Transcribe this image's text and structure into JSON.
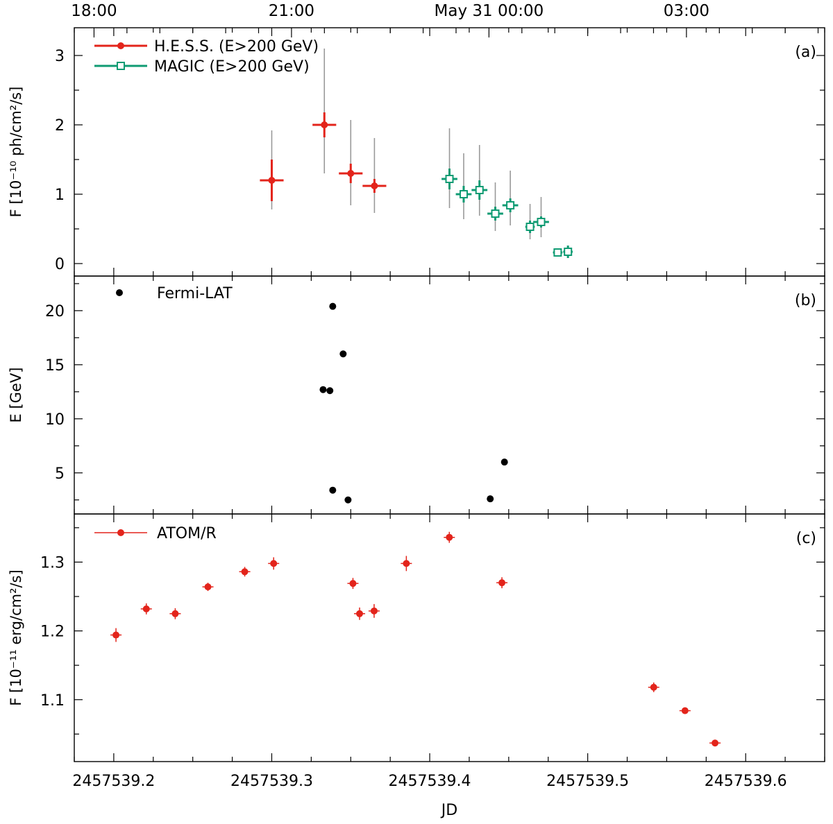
{
  "chart_data": {
    "type": "scatter",
    "title": "",
    "time_axis": {
      "ticks": [
        {
          "jd": 2457539.1875,
          "label": "18:00"
        },
        {
          "jd": 2457539.3125,
          "label": "21:00"
        },
        {
          "jd": 2457539.4375,
          "label": "May 31 00:00"
        },
        {
          "jd": 2457539.5625,
          "label": "03:00"
        }
      ],
      "minor_step_days": 0.0208333
    },
    "x_axis": {
      "label": "JD",
      "range": [
        2457539.175,
        2457539.65
      ],
      "ticks": [
        2457539.2,
        2457539.3,
        2457539.4,
        2457539.5,
        2457539.6
      ],
      "tick_labels": [
        "2457539.2",
        "2457539.3",
        "2457539.4",
        "2457539.5",
        "2457539.6"
      ],
      "minor_step": 0.025
    },
    "panels": [
      {
        "id": "a",
        "panel_label": "(a)",
        "ylabel": "F [10⁻¹⁰ ph/cm²/s]",
        "ylim": [
          -0.18,
          3.4
        ],
        "yticks": [
          0,
          1,
          2,
          3
        ],
        "ytick_labels": [
          "0",
          "1",
          "2",
          "3"
        ],
        "series": [
          {
            "name": "H.E.S.S. (E>200 GeV)",
            "color": "#e3241b",
            "marker": "filled-circle",
            "points": [
              {
                "x": 2457539.3,
                "y": 1.2,
                "xerr": 0.0075,
                "yerr": 0.3,
                "sys": [
                  0.78,
                  1.92
                ]
              },
              {
                "x": 2457539.3333,
                "y": 2.0,
                "xerr": 0.0075,
                "yerr": 0.18,
                "sys": [
                  1.3,
                  3.1
                ]
              },
              {
                "x": 2457539.35,
                "y": 1.3,
                "xerr": 0.0075,
                "yerr": 0.14,
                "sys": [
                  0.84,
                  2.07
                ]
              },
              {
                "x": 2457539.365,
                "y": 1.12,
                "xerr": 0.0075,
                "yerr": 0.1,
                "sys": [
                  0.73,
                  1.81
                ]
              }
            ]
          },
          {
            "name": "MAGIC (E>200 GeV)",
            "color": "#0f9b73",
            "marker": "open-square",
            "points": [
              {
                "x": 2457539.4125,
                "y": 1.22,
                "xerr": 0.005,
                "yerr": 0.15,
                "sys": [
                  0.8,
                  1.95
                ]
              },
              {
                "x": 2457539.4215,
                "y": 1.0,
                "xerr": 0.005,
                "yerr": 0.12,
                "sys": [
                  0.64,
                  1.59
                ]
              },
              {
                "x": 2457539.4315,
                "y": 1.06,
                "xerr": 0.005,
                "yerr": 0.14,
                "sys": [
                  0.69,
                  1.71
                ]
              },
              {
                "x": 2457539.4415,
                "y": 0.72,
                "xerr": 0.005,
                "yerr": 0.1,
                "sys": [
                  0.47,
                  1.17
                ]
              },
              {
                "x": 2457539.451,
                "y": 0.84,
                "xerr": 0.005,
                "yerr": 0.1,
                "sys": [
                  0.55,
                  1.34
                ]
              },
              {
                "x": 2457539.4635,
                "y": 0.53,
                "xerr": 0.003,
                "yerr": 0.09,
                "sys": [
                  0.35,
                  0.86
                ]
              },
              {
                "x": 2457539.4705,
                "y": 0.6,
                "xerr": 0.005,
                "yerr": 0.08,
                "sys": [
                  0.38,
                  0.96
                ]
              },
              {
                "x": 2457539.481,
                "y": 0.16,
                "xerr": 0.003,
                "yerr": 0.04,
                "sys": null
              },
              {
                "x": 2457539.4875,
                "y": 0.17,
                "xerr": 0.003,
                "yerr": 0.09,
                "sys": null
              }
            ]
          }
        ]
      },
      {
        "id": "b",
        "panel_label": "(b)",
        "ylabel": "E [GeV]",
        "ylim": [
          1.2,
          23.2
        ],
        "yticks": [
          5,
          10,
          15,
          20
        ],
        "ytick_labels": [
          "5",
          "10",
          "15",
          "20"
        ],
        "series": [
          {
            "name": "Fermi-LAT",
            "color": "#000000",
            "marker": "filled-circle",
            "points": [
              {
                "x": 2457539.3325,
                "y": 12.7
              },
              {
                "x": 2457539.3368,
                "y": 12.6
              },
              {
                "x": 2457539.3386,
                "y": 20.4
              },
              {
                "x": 2457539.3386,
                "y": 3.4
              },
              {
                "x": 2457539.3452,
                "y": 16.0
              },
              {
                "x": 2457539.3483,
                "y": 2.5
              },
              {
                "x": 2457539.4383,
                "y": 2.6
              },
              {
                "x": 2457539.4473,
                "y": 6.0
              }
            ]
          }
        ]
      },
      {
        "id": "c",
        "panel_label": "(c)",
        "ylabel": "F [10⁻¹¹ erg/cm²/s]",
        "ylim": [
          1.01,
          1.37
        ],
        "yticks": [
          1.1,
          1.2,
          1.3
        ],
        "ytick_labels": [
          "1.1",
          "1.2",
          "1.3"
        ],
        "series": [
          {
            "name": "ATOM/R",
            "color": "#e3241b",
            "marker": "filled-circle-errorbar",
            "points": [
              {
                "x": 2457539.2014,
                "y": 1.194,
                "yerr": 0.01
              },
              {
                "x": 2457539.2206,
                "y": 1.232,
                "yerr": 0.008
              },
              {
                "x": 2457539.2389,
                "y": 1.225,
                "yerr": 0.008
              },
              {
                "x": 2457539.2596,
                "y": 1.264,
                "yerr": 0.006
              },
              {
                "x": 2457539.2829,
                "y": 1.286,
                "yerr": 0.007
              },
              {
                "x": 2457539.3012,
                "y": 1.298,
                "yerr": 0.009
              },
              {
                "x": 2457539.3514,
                "y": 1.269,
                "yerr": 0.008
              },
              {
                "x": 2457539.3556,
                "y": 1.225,
                "yerr": 0.009
              },
              {
                "x": 2457539.3648,
                "y": 1.229,
                "yerr": 0.01
              },
              {
                "x": 2457539.3852,
                "y": 1.298,
                "yerr": 0.011
              },
              {
                "x": 2457539.4124,
                "y": 1.336,
                "yerr": 0.008
              },
              {
                "x": 2457539.4457,
                "y": 1.27,
                "yerr": 0.008
              },
              {
                "x": 2457539.5418,
                "y": 1.118,
                "yerr": 0.007
              },
              {
                "x": 2457539.5616,
                "y": 1.084,
                "yerr": 0.004
              },
              {
                "x": 2457539.5806,
                "y": 1.037,
                "yerr": 0.003
              }
            ]
          }
        ]
      }
    ]
  },
  "colors": {
    "sys_error": "#999999",
    "axis": "#000000"
  }
}
